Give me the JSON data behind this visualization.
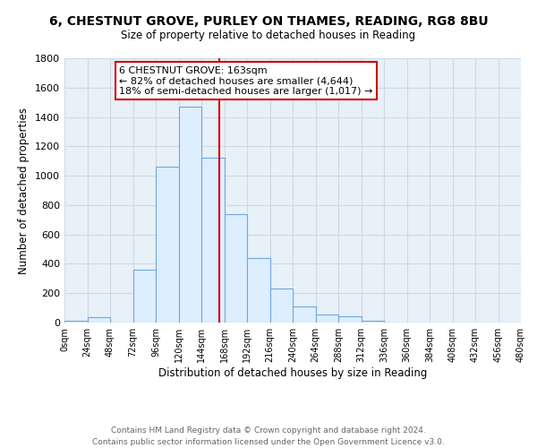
{
  "title": "6, CHESTNUT GROVE, PURLEY ON THAMES, READING, RG8 8BU",
  "subtitle": "Size of property relative to detached houses in Reading",
  "xlabel": "Distribution of detached houses by size in Reading",
  "ylabel": "Number of detached properties",
  "bin_edges": [
    0,
    24,
    48,
    72,
    96,
    120,
    144,
    168,
    192,
    216,
    240,
    264,
    288,
    312,
    336,
    360,
    384,
    408,
    432,
    456,
    480
  ],
  "counts": [
    10,
    35,
    0,
    360,
    1060,
    1470,
    1120,
    740,
    440,
    230,
    110,
    55,
    45,
    15,
    0,
    0,
    0,
    0,
    0,
    0
  ],
  "bar_facecolor": "#ddeeff",
  "bar_edgecolor": "#6fa8dc",
  "grid_color": "#d0d8e8",
  "property_line_x": 163,
  "property_line_color": "#cc0000",
  "annotation_box_edgecolor": "#cc0000",
  "annotation_line1": "6 CHESTNUT GROVE: 163sqm",
  "annotation_line2": "← 82% of detached houses are smaller (4,644)",
  "annotation_line3": "18% of semi-detached houses are larger (1,017) →",
  "ylim": [
    0,
    1800
  ],
  "xlim": [
    0,
    480
  ],
  "yticks": [
    0,
    200,
    400,
    600,
    800,
    1000,
    1200,
    1400,
    1600,
    1800
  ],
  "tick_positions": [
    0,
    24,
    48,
    72,
    96,
    120,
    144,
    168,
    192,
    216,
    240,
    264,
    288,
    312,
    336,
    360,
    384,
    408,
    432,
    456,
    480
  ],
  "tick_labels": [
    "0sqm",
    "24sqm",
    "48sqm",
    "72sqm",
    "96sqm",
    "120sqm",
    "144sqm",
    "168sqm",
    "192sqm",
    "216sqm",
    "240sqm",
    "264sqm",
    "288sqm",
    "312sqm",
    "336sqm",
    "360sqm",
    "384sqm",
    "408sqm",
    "432sqm",
    "456sqm",
    "480sqm"
  ],
  "footer_line1": "Contains HM Land Registry data © Crown copyright and database right 2024.",
  "footer_line2": "Contains public sector information licensed under the Open Government Licence v3.0.",
  "background_color": "#ffffff",
  "plot_bg_color": "#e8f0f8"
}
